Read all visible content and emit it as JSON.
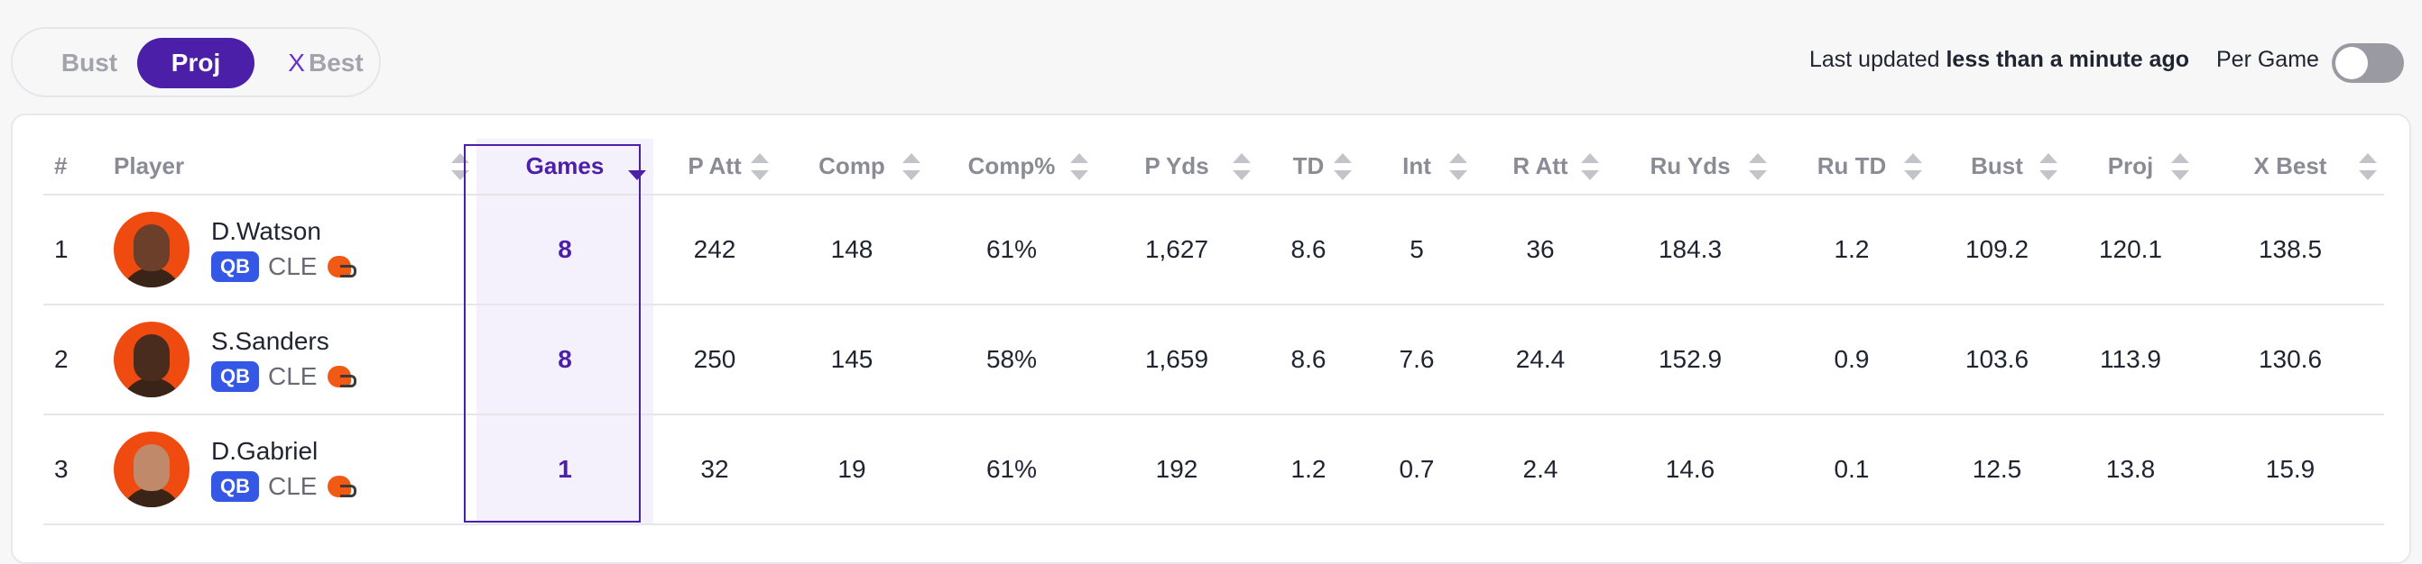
{
  "toggle_group": {
    "bust_label": "Bust",
    "proj_label": "Proj",
    "best_x": "X",
    "best_label": "Best",
    "selected": "Proj"
  },
  "status": {
    "last_updated_prefix": "Last updated ",
    "last_updated_value": "less than a minute ago",
    "per_game_label": "Per Game",
    "per_game_on": false
  },
  "table": {
    "headers": [
      "#",
      "Player",
      "Games",
      "P Att",
      "Comp",
      "Comp%",
      "P Yds",
      "TD",
      "Int",
      "R Att",
      "Ru Yds",
      "Ru TD",
      "Bust",
      "Proj",
      "X Best"
    ],
    "sorted_column": "Games",
    "rows": [
      {
        "rank": "1",
        "name": "D.Watson",
        "pos": "QB",
        "team": "CLE",
        "games": "8",
        "patt": "242",
        "comp": "148",
        "comp_pct": "61%",
        "pyds": "1,627",
        "td": "8.6",
        "int": "5",
        "ratt": "36",
        "ruyds": "184.3",
        "rutd": "1.2",
        "bust": "109.2",
        "proj": "120.1",
        "best": "138.5"
      },
      {
        "rank": "2",
        "name": "S.Sanders",
        "pos": "QB",
        "team": "CLE",
        "games": "8",
        "patt": "250",
        "comp": "145",
        "comp_pct": "58%",
        "pyds": "1,659",
        "td": "8.6",
        "int": "7.6",
        "ratt": "24.4",
        "ruyds": "152.9",
        "rutd": "0.9",
        "bust": "103.6",
        "proj": "113.9",
        "best": "130.6"
      },
      {
        "rank": "3",
        "name": "D.Gabriel",
        "pos": "QB",
        "team": "CLE",
        "games": "1",
        "patt": "32",
        "comp": "19",
        "comp_pct": "61%",
        "pyds": "192",
        "td": "1.2",
        "int": "0.7",
        "ratt": "2.4",
        "ruyds": "14.6",
        "rutd": "0.1",
        "bust": "12.5",
        "proj": "13.8",
        "best": "15.9"
      }
    ]
  },
  "colors": {
    "accent": "#4b1fa8",
    "badge": "#3457e6",
    "team": "#ef4b10"
  }
}
